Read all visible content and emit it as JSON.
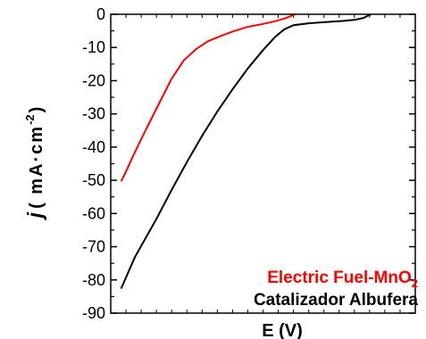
{
  "chart_data": {
    "type": "line",
    "title": "",
    "xlabel": "E (V)",
    "ylabel": {
      "prefix": "j",
      "units_main": "( mA·cm",
      "units_sup": "-2",
      "units_close": ")"
    },
    "ylim": [
      -90,
      0
    ],
    "yticks": [
      0,
      -10,
      -20,
      -30,
      -40,
      -50,
      -60,
      -70,
      -80,
      -90
    ],
    "ytick_labels": [
      "0",
      "-10",
      "-20",
      "-30",
      "-40",
      "-50",
      "-60",
      "-70",
      "-80",
      "-90"
    ],
    "xlim": [
      0,
      1
    ],
    "xticks_minor": [
      0.05,
      0.1,
      0.15,
      0.2,
      0.25,
      0.3,
      0.35,
      0.4,
      0.45,
      0.5,
      0.55,
      0.6,
      0.65,
      0.7,
      0.75,
      0.8,
      0.85,
      0.9,
      0.95
    ],
    "grid": false,
    "legend_position": "bottom-right",
    "series": [
      {
        "name": "Electric Fuel-MnO",
        "name_sub": "2",
        "color": "#ff0000",
        "points": [
          [
            0.034,
            -50.3
          ],
          [
            0.05,
            -47.4
          ],
          [
            0.07,
            -43.3
          ],
          [
            0.1,
            -37.6
          ],
          [
            0.13,
            -32.1
          ],
          [
            0.16,
            -26.6
          ],
          [
            0.2,
            -19.4
          ],
          [
            0.24,
            -13.9
          ],
          [
            0.28,
            -10.5
          ],
          [
            0.32,
            -8.1
          ],
          [
            0.36,
            -6.6
          ],
          [
            0.4,
            -5.2
          ],
          [
            0.45,
            -3.8
          ],
          [
            0.5,
            -2.9
          ],
          [
            0.54,
            -2.1
          ],
          [
            0.57,
            -1.3
          ],
          [
            0.59,
            -0.6
          ],
          [
            0.605,
            0.0
          ]
        ]
      },
      {
        "name": "Catalizador Albufera",
        "color": "#000000",
        "points": [
          [
            0.034,
            -82.6
          ],
          [
            0.08,
            -73.0
          ],
          [
            0.15,
            -61.6
          ],
          [
            0.2,
            -52.9
          ],
          [
            0.25,
            -44.5
          ],
          [
            0.3,
            -36.6
          ],
          [
            0.35,
            -29.3
          ],
          [
            0.4,
            -22.6
          ],
          [
            0.45,
            -16.3
          ],
          [
            0.5,
            -10.8
          ],
          [
            0.54,
            -6.8
          ],
          [
            0.57,
            -4.5
          ],
          [
            0.6,
            -3.3
          ],
          [
            0.65,
            -2.7
          ],
          [
            0.7,
            -2.4
          ],
          [
            0.75,
            -2.1
          ],
          [
            0.8,
            -1.7
          ],
          [
            0.83,
            -1.1
          ],
          [
            0.845,
            -0.4
          ],
          [
            0.855,
            0.0
          ]
        ]
      }
    ]
  }
}
